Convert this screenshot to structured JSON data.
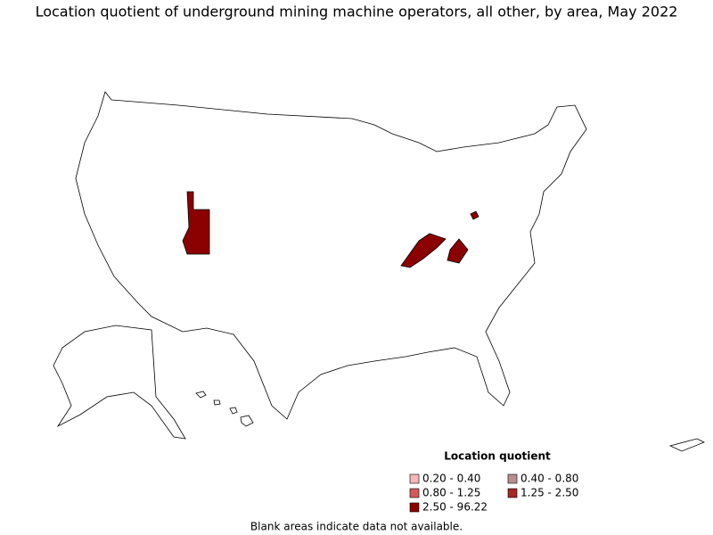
{
  "title": "Location quotient of underground mining machine operators, all other, by area, May 2022",
  "legend": {
    "title": "Location quotient",
    "items": [
      {
        "label": "0.20 - 0.40",
        "color": "#f5b8b8"
      },
      {
        "label": "0.40 - 0.80",
        "color": "#b88e8e"
      },
      {
        "label": "0.80 - 1.25",
        "color": "#d05a5a"
      },
      {
        "label": "1.25 - 2.50",
        "color": "#a52626"
      },
      {
        "label": "2.50 - 96.22",
        "color": "#8b0000"
      }
    ]
  },
  "note": "Blank areas indicate data not available."
}
